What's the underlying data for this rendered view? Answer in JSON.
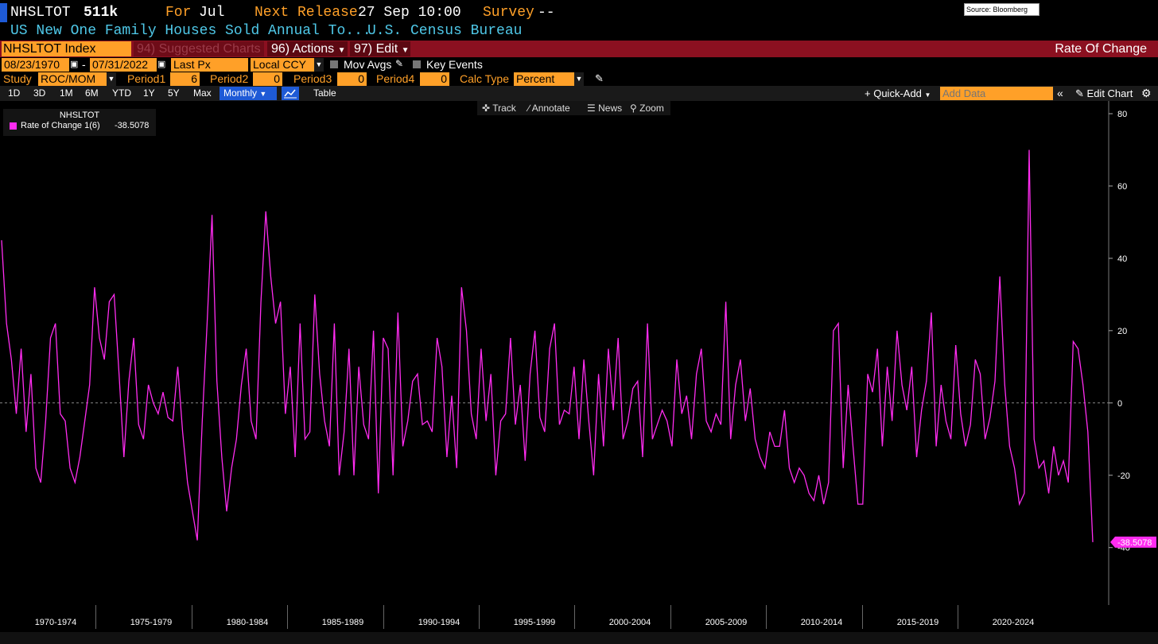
{
  "header": {
    "ticker": "NHSLTOT",
    "last_value": "511k",
    "for_label": "For",
    "for_period": "Jul",
    "next_release_label": "Next Release",
    "next_release_value": "27 Sep 10:00",
    "survey_label": "Survey",
    "survey_value": "--",
    "description": "US New One Family Houses Sold Annual To...",
    "source_agency": "U.S. Census Bureau",
    "source_box": "Source: Bloomberg"
  },
  "menubar": {
    "security": "NHSLTOT Index",
    "suggested_charts": "94) Suggested Charts",
    "actions": "96) Actions",
    "edit": "97) Edit",
    "chart_title": "Rate Of Change"
  },
  "controls": {
    "start_date": "08/23/1970",
    "end_date": "07/31/2022",
    "date_sep": "-",
    "price_field": "Last Px",
    "currency": "Local CCY",
    "mov_avgs": "Mov Avgs",
    "key_events": "Key Events",
    "study_label": "Study",
    "study_value": "ROC/MOM",
    "period1_label": "Period1",
    "period1_value": "6",
    "period2_label": "Period2",
    "period2_value": "0",
    "period3_label": "Period3",
    "period3_value": "0",
    "period4_label": "Period4",
    "period4_value": "0",
    "calc_type_label": "Calc Type",
    "calc_type_value": "Percent"
  },
  "chartbar": {
    "ranges": [
      "1D",
      "3D",
      "1M",
      "6M",
      "YTD",
      "1Y",
      "5Y",
      "Max"
    ],
    "frequency": "Monthly",
    "table": "Table",
    "quick_add": "Quick-Add",
    "add_data_placeholder": "Add Data",
    "edit_chart": "Edit Chart"
  },
  "toolbar": {
    "track": "Track",
    "annotate": "Annotate",
    "news": "News",
    "zoom": "Zoom"
  },
  "colors": {
    "series": "#ff2cf0",
    "accent": "#ffa028",
    "menubar": "#8b1020",
    "cyan": "#4fc8e8"
  },
  "chart_data": {
    "type": "line",
    "legend_title": "NHSLTOT",
    "series": [
      {
        "name": "Rate of Change 1(6)",
        "last_label": "-38.5078",
        "x_start": 1970.0,
        "x_step": 0.25,
        "values": [
          45,
          22,
          12,
          -3,
          15,
          -8,
          8,
          -18,
          -22,
          -5,
          18,
          22,
          -3,
          -5,
          -18,
          -22,
          -15,
          -5,
          5,
          32,
          18,
          12,
          28,
          30,
          8,
          -15,
          6,
          18,
          -6,
          -10,
          5,
          0,
          -3,
          3,
          -4,
          -5,
          10,
          -8,
          -22,
          -30,
          -38,
          -5,
          22,
          52,
          6,
          -15,
          -30,
          -18,
          -10,
          5,
          15,
          -5,
          -10,
          28,
          53,
          35,
          22,
          28,
          -3,
          10,
          -15,
          22,
          -10,
          -8,
          30,
          8,
          -5,
          -12,
          22,
          -20,
          -8,
          15,
          -20,
          10,
          -6,
          -10,
          20,
          -25,
          18,
          15,
          -20,
          25,
          -12,
          -5,
          6,
          8,
          -6,
          -5,
          -8,
          18,
          10,
          -15,
          2,
          -18,
          32,
          20,
          -3,
          -10,
          15,
          -5,
          8,
          -20,
          -5,
          -3,
          18,
          -6,
          5,
          -16,
          8,
          20,
          -4,
          -8,
          15,
          22,
          -6,
          -2,
          -3,
          10,
          -10,
          12,
          -5,
          -20,
          8,
          -12,
          15,
          -2,
          18,
          -10,
          -5,
          4,
          6,
          -15,
          22,
          -10,
          -6,
          -2,
          -5,
          -12,
          12,
          -3,
          2,
          -10,
          8,
          15,
          -5,
          -8,
          -3,
          -6,
          28,
          -10,
          5,
          12,
          -5,
          4,
          -10,
          -15,
          -18,
          -8,
          -12,
          -12,
          -2,
          -18,
          -22,
          -18,
          -20,
          -25,
          -27,
          -20,
          -28,
          -22,
          20,
          22,
          -18,
          5,
          -12,
          -28,
          -28,
          8,
          3,
          15,
          -12,
          10,
          -5,
          20,
          5,
          -2,
          10,
          -15,
          -2,
          6,
          25,
          -12,
          5,
          -5,
          -10,
          16,
          -3,
          -12,
          -6,
          12,
          8,
          -10,
          -4,
          6,
          35,
          5,
          -12,
          -18,
          -28,
          -25,
          70,
          -10,
          -18,
          -16,
          -25,
          -12,
          -20,
          -16,
          -22,
          17,
          15,
          5,
          -8,
          -38.5
        ]
      }
    ],
    "x_ticks": [
      "1970-1974",
      "1975-1979",
      "1980-1984",
      "1985-1989",
      "1990-1994",
      "1995-1999",
      "2000-2004",
      "2005-2009",
      "2010-2014",
      "2015-2019",
      "2020-2024"
    ],
    "y_ticks": [
      80,
      60,
      40,
      20,
      0,
      -20,
      -40
    ],
    "ylim": [
      -56,
      82
    ],
    "zero_line": true,
    "grid": false,
    "legend_position": "top-left"
  }
}
